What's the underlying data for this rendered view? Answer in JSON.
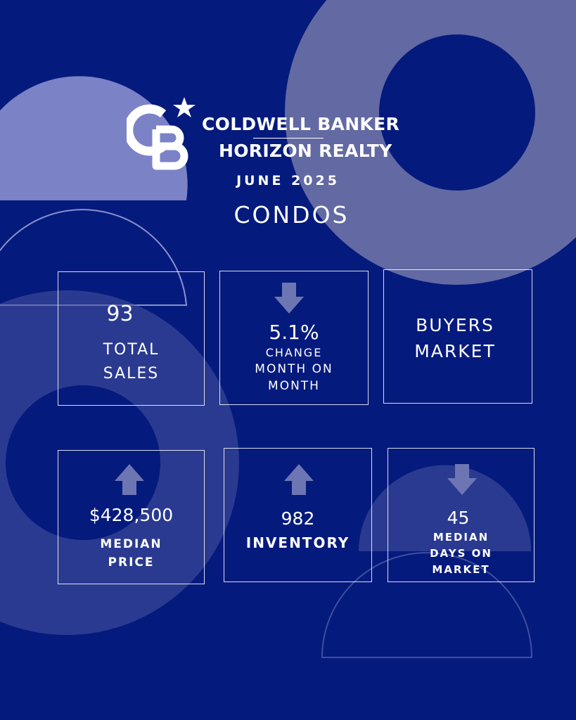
{
  "brand": {
    "line1": "COLDWELL BANKER",
    "line2": "HORIZON REALTY",
    "logo_letters": "CB"
  },
  "report": {
    "period": "JUNE 2025",
    "category": "CONDOS"
  },
  "colors": {
    "background": "#041a7d",
    "accent_shape": "#6369a2",
    "arrow": "#6d76b3",
    "text": "#ffffff"
  },
  "stats": {
    "total_sales": {
      "value": "93",
      "label_line1": "TOTAL",
      "label_line2": "SALES"
    },
    "change": {
      "value": "5.1%",
      "direction": "down",
      "label_line1": "CHANGE",
      "label_line2": "MONTH ON",
      "label_line3": "MONTH"
    },
    "market": {
      "label_line1": "BUYERS",
      "label_line2": "MARKET"
    },
    "median_price": {
      "value": "$428,500",
      "direction": "up",
      "label_line1": "MEDIAN",
      "label_line2": "PRICE"
    },
    "inventory": {
      "value": "982",
      "direction": "up",
      "label": "INVENTORY"
    },
    "days_on_market": {
      "value": "45",
      "direction": "down",
      "label_line1": "MEDIAN",
      "label_line2": "DAYS ON",
      "label_line3": "MARKET"
    }
  }
}
